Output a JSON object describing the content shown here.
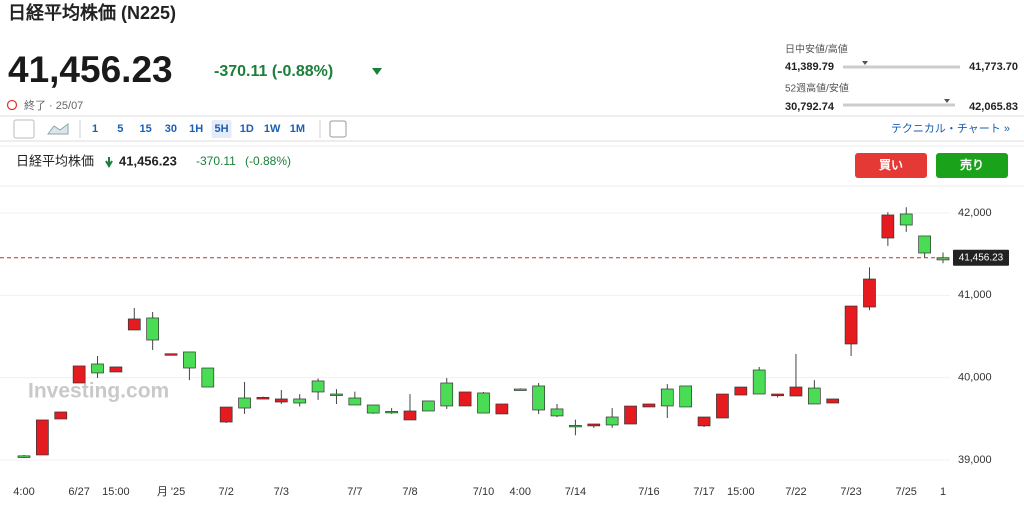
{
  "header": {
    "title": "日経平均株価 (N225)",
    "price": "41,456.23",
    "change": "-370.11 (-0.88%)",
    "status": "終了 · 25/07"
  },
  "stats": [
    {
      "label": "日中安値/高値",
      "low": "41,389.79",
      "high": "41,773.70"
    },
    {
      "label": "52週高値/安値",
      "low": "30,792.74",
      "high": "42,065.83"
    }
  ],
  "toolbar": {
    "intervals": [
      "1",
      "5",
      "15",
      "30",
      "1H",
      "5H",
      "1D",
      "1W",
      "1M"
    ],
    "selected": "5H",
    "technical": "テクニカル・チャート »"
  },
  "chart_header": {
    "name": "日経平均株価",
    "price": "41,456.23",
    "change": "-370.11",
    "percent": "(-0.88%)",
    "buy": "買い",
    "sell": "売り"
  },
  "watermark": "Investing.com",
  "chart_data": {
    "type": "candlestick",
    "up_color": "#4bdc55",
    "down_color": "#e51b20",
    "categories": [
      "4:00",
      null,
      null,
      "6/27",
      null,
      "15:00",
      null,
      null,
      "月 '25",
      null,
      null,
      "7/2",
      null,
      null,
      "7/3",
      null,
      null,
      null,
      "7/7",
      null,
      null,
      "7/8",
      null,
      null,
      null,
      "7/10",
      null,
      "4:00",
      null,
      null,
      "7/14",
      null,
      null,
      null,
      "7/16",
      null,
      null,
      "7/17",
      null,
      "15:00",
      null,
      null,
      "7/22",
      null,
      null,
      "7/23",
      null,
      null,
      "7/25",
      null,
      "1"
    ],
    "open": [
      39030,
      39486,
      39583,
      40142,
      40057,
      40130,
      40713,
      40457,
      40290,
      40117,
      39886,
      39643,
      39631,
      39760,
      39741,
      39692,
      39826,
      39800,
      39668,
      39570,
      39585,
      39595,
      39595,
      39656,
      39826,
      39570,
      39680,
      39862,
      39607,
      39535,
      39414,
      39437,
      39425,
      39655,
      39680,
      39656,
      39644,
      39522,
      39801,
      39886,
      39801,
      39801,
      39886,
      39680,
      39741,
      40870,
      41198,
      41976,
      41854,
      41514,
      41430
    ],
    "high": [
      39060,
      39486,
      39583,
      40142,
      40263,
      40130,
      40846,
      40798,
      40290,
      40312,
      40117,
      39643,
      39947,
      39770,
      39850,
      39800,
      39990,
      39860,
      39830,
      39668,
      39630,
      39800,
      39717,
      39995,
      39826,
      39826,
      39680,
      39870,
      39935,
      39680,
      39490,
      39437,
      39630,
      39655,
      39680,
      39922,
      39899,
      39522,
      39801,
      39886,
      40130,
      39801,
      40287,
      39970,
      39741,
      40870,
      41340,
      42010,
      42070,
      41721,
      41520
    ],
    "low": [
      39025,
      39061,
      39498,
      39935,
      39996,
      40069,
      40579,
      40336,
      40280,
      39970,
      39886,
      39450,
      39559,
      39740,
      39680,
      39650,
      39730,
      39680,
      39668,
      39560,
      39560,
      39486,
      39595,
      39620,
      39656,
      39570,
      39559,
      39855,
      39559,
      39520,
      39300,
      39390,
      39390,
      39437,
      39644,
      39510,
      39644,
      39400,
      39510,
      39789,
      39801,
      39760,
      39777,
      39680,
      39692,
      40263,
      40820,
      41600,
      41770,
      41460,
      41390
    ],
    "close": [
      39050,
      39061,
      39498,
      39935,
      40166,
      40069,
      40579,
      40725,
      40280,
      40312,
      40117,
      39461,
      39753,
      39740,
      39704,
      39741,
      39960,
      39801,
      39753,
      39668,
      39590,
      39486,
      39717,
      39935,
      39656,
      39814,
      39559,
      39862,
      39899,
      39620,
      39420,
      39414,
      39522,
      39437,
      39644,
      39862,
      39899,
      39414,
      39510,
      39789,
      40093,
      39780,
      39777,
      39874,
      39692,
      40409,
      40858,
      41696,
      41988,
      41721,
      41456.23
    ],
    "ylim": [
      38781,
      42340
    ],
    "yticks": [
      {
        "value": 39000,
        "label": "39,000"
      },
      {
        "value": 40000,
        "label": "40,000"
      },
      {
        "value": 41000,
        "label": "41,000"
      },
      {
        "value": 42000,
        "label": "42,000"
      }
    ],
    "last_price": 41456.23,
    "last_price_label": "41,456.23",
    "grid": true
  }
}
